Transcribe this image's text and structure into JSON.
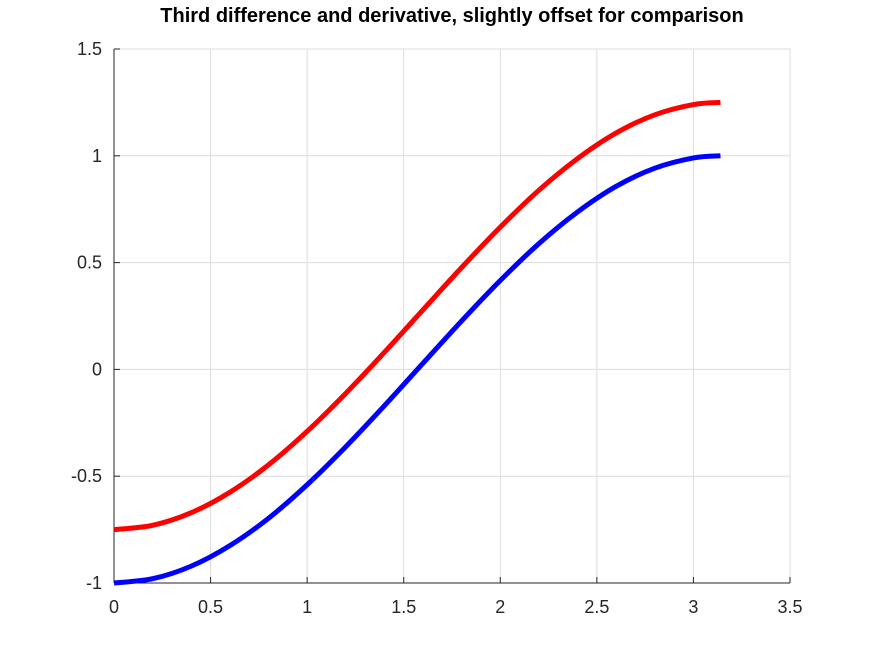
{
  "chart_data": {
    "type": "line",
    "title": "Third difference and derivative, slightly offset for comparison",
    "xlabel": "",
    "ylabel": "",
    "xlim": [
      0,
      3.5
    ],
    "ylim": [
      -1,
      1.5
    ],
    "grid": true,
    "legend": "none",
    "x_ticks": [
      0,
      0.5,
      1,
      1.5,
      2,
      2.5,
      3,
      3.5
    ],
    "x_tick_labels": [
      "0",
      "0.5",
      "1",
      "1.5",
      "2",
      "2.5",
      "3",
      "3.5"
    ],
    "y_ticks": [
      -1,
      -0.5,
      0,
      0.5,
      1,
      1.5
    ],
    "y_tick_labels": [
      "-1",
      "-0.5",
      "0",
      "0.5",
      "1",
      "1.5"
    ],
    "series": [
      {
        "color": "#0000ff",
        "x": [
          0,
          0.2,
          0.4,
          0.6,
          0.8,
          1.0,
          1.2,
          1.4,
          1.6,
          1.8,
          2.0,
          2.2,
          2.4,
          2.6,
          2.8,
          3.0,
          3.14
        ],
        "y": [
          -1.0,
          -0.98,
          -0.921,
          -0.825,
          -0.697,
          -0.54,
          -0.362,
          -0.17,
          0.029,
          0.227,
          0.416,
          0.589,
          0.737,
          0.857,
          0.942,
          0.99,
          1.0
        ]
      },
      {
        "color": "#ff0000",
        "x": [
          0,
          0.2,
          0.4,
          0.6,
          0.8,
          1.0,
          1.2,
          1.4,
          1.6,
          1.8,
          2.0,
          2.2,
          2.4,
          2.6,
          2.8,
          3.0,
          3.14
        ],
        "y": [
          -0.75,
          -0.73,
          -0.671,
          -0.575,
          -0.447,
          -0.29,
          -0.112,
          0.08,
          0.279,
          0.477,
          0.666,
          0.839,
          0.987,
          1.107,
          1.192,
          1.24,
          1.25
        ]
      }
    ]
  }
}
